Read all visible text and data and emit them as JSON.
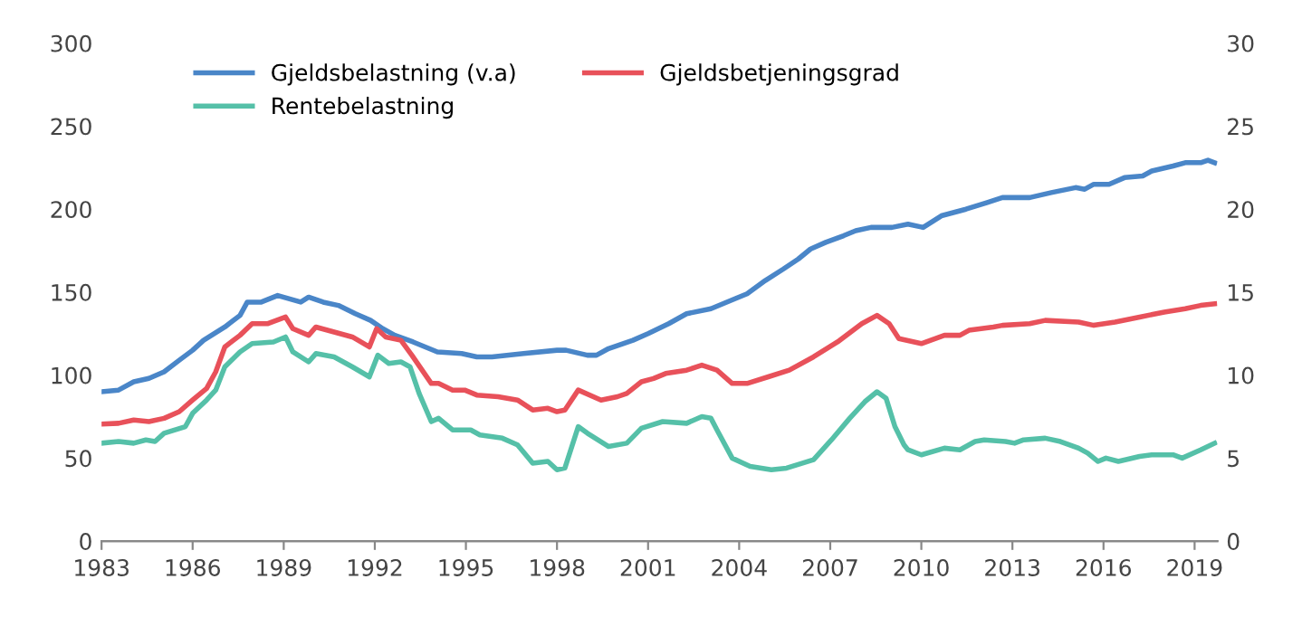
{
  "chart_data": {
    "type": "line",
    "xlim": [
      1983,
      2019.75
    ],
    "xticks": [
      1983,
      1986,
      1989,
      1992,
      1995,
      1998,
      2001,
      2004,
      2007,
      2010,
      2013,
      2016,
      2019
    ],
    "ylim": [
      0,
      300
    ],
    "yticks": [
      0,
      50,
      100,
      150,
      200,
      250,
      300
    ],
    "y2lim": [
      0,
      30
    ],
    "y2ticks": [
      0,
      5,
      10,
      15,
      20,
      25,
      30
    ],
    "legend": "top",
    "grid": false,
    "series": [
      {
        "name": "Gjeldsbelastning (v.a)",
        "color": "#4a86c8",
        "axis": "y",
        "x": [
          1983,
          1983.56,
          1984.06,
          1984.56,
          1985.06,
          1985.56,
          1986,
          1986.36,
          1987.06,
          1987.56,
          1987.8,
          1988.26,
          1988.8,
          1989.56,
          1989.82,
          1990.3,
          1990.8,
          1991.36,
          1991.86,
          1992.26,
          1992.66,
          1993.26,
          1994.06,
          1994.86,
          1995.36,
          1995.86,
          1996.9,
          1998,
          1998.3,
          1999.0,
          1999.3,
          1999.7,
          2000.5,
          2001,
          2001.68,
          2002.27,
          2003.07,
          2003.86,
          2004.26,
          2004.86,
          2005.46,
          2005.95,
          2006.35,
          2006.85,
          2007.44,
          2007.84,
          2008.34,
          2009.03,
          2009.56,
          2010.06,
          2010.66,
          2011.47,
          2012.17,
          2012.67,
          2013.57,
          2014.28,
          2015.08,
          2015.38,
          2015.68,
          2016.18,
          2016.69,
          2017.29,
          2017.59,
          2018.29,
          2018.69,
          2019.2,
          2019.44,
          2019.66
        ],
        "values": [
          90,
          91,
          96,
          98,
          102,
          109,
          115,
          121,
          129,
          136,
          144,
          144,
          148,
          144,
          147,
          144,
          142,
          137,
          133,
          128,
          124,
          120,
          114,
          113,
          111,
          111,
          113,
          115,
          115,
          112,
          112,
          116,
          121,
          125,
          131,
          137,
          140,
          146,
          149,
          157,
          164,
          170,
          176,
          180,
          184,
          187,
          189,
          189,
          191,
          189,
          196,
          200,
          204,
          207,
          207,
          210,
          213,
          212,
          215,
          215,
          219,
          220,
          223,
          226,
          228,
          228,
          229.5,
          228
        ]
      },
      {
        "name": "Gjeldsbetjeningsgrad",
        "color": "#e8515a",
        "axis": "y2",
        "x": [
          1983,
          1983.56,
          1984.06,
          1984.56,
          1985.06,
          1985.56,
          1986,
          1986.46,
          1986.76,
          1987.06,
          1987.56,
          1987.96,
          1988.46,
          1989.06,
          1989.3,
          1989.82,
          1990.06,
          1990.66,
          1991.26,
          1991.82,
          1992.06,
          1992.36,
          1992.86,
          1993.22,
          1993.86,
          1994.1,
          1994.56,
          1994.96,
          1995.36,
          1996.06,
          1996.7,
          1997.2,
          1997.7,
          1998,
          1998.26,
          1998.7,
          1999.45,
          1999.99,
          2000.3,
          2000.78,
          2001.18,
          2001.58,
          2002.27,
          2002.77,
          2003.27,
          2003.77,
          2004.26,
          2004.96,
          2005.65,
          2006.45,
          2007.24,
          2008.04,
          2008.54,
          2008.94,
          2009.26,
          2010,
          2010.76,
          2011.27,
          2011.57,
          2012.37,
          2012.67,
          2013.57,
          2014.08,
          2015.18,
          2015.68,
          2016.38,
          2017.19,
          2018,
          2018.69,
          2019.2,
          2019.66
        ],
        "values": [
          7.05,
          7.1,
          7.3,
          7.2,
          7.4,
          7.8,
          8.5,
          9.2,
          10.2,
          11.7,
          12.4,
          13.1,
          13.1,
          13.5,
          12.8,
          12.4,
          12.9,
          12.6,
          12.3,
          11.7,
          12.8,
          12.3,
          12.1,
          11.2,
          9.5,
          9.5,
          9.1,
          9.1,
          8.8,
          8.7,
          8.5,
          7.9,
          8.0,
          7.8,
          7.9,
          9.1,
          8.5,
          8.7,
          8.9,
          9.6,
          9.8,
          10.1,
          10.3,
          10.6,
          10.3,
          9.5,
          9.5,
          9.9,
          10.3,
          11.1,
          12.0,
          13.1,
          13.6,
          13.1,
          12.2,
          11.9,
          12.4,
          12.4,
          12.7,
          12.9,
          13.0,
          13.1,
          13.3,
          13.2,
          13.0,
          13.2,
          13.5,
          13.8,
          14.0,
          14.2,
          14.3
        ]
      },
      {
        "name": "Rentebelastning",
        "color": "#55c0a8",
        "axis": "y2",
        "x": [
          1983,
          1983.56,
          1984.06,
          1984.46,
          1984.76,
          1985.06,
          1985.76,
          1986,
          1986.46,
          1986.76,
          1987.06,
          1987.56,
          1987.96,
          1988.66,
          1989.06,
          1989.3,
          1989.82,
          1990.06,
          1990.66,
          1991.26,
          1991.82,
          1992.1,
          1992.46,
          1992.86,
          1993.16,
          1993.46,
          1993.86,
          1994.1,
          1994.56,
          1995.16,
          1995.46,
          1996.2,
          1996.7,
          1997.2,
          1997.7,
          1998,
          1998.26,
          1998.7,
          1999.0,
          1999.7,
          2000.3,
          2000.78,
          2001.48,
          2002.27,
          2002.77,
          2003.07,
          2003.27,
          2003.77,
          2004.36,
          2005.06,
          2005.56,
          2006.45,
          2007.04,
          2007.64,
          2008.14,
          2008.54,
          2008.84,
          2009.13,
          2009.43,
          2009.56,
          2010,
          2010.76,
          2011.27,
          2011.77,
          2012.07,
          2012.77,
          2013.07,
          2013.37,
          2014.08,
          2014.58,
          2015.18,
          2015.48,
          2015.82,
          2016.08,
          2016.49,
          2017.19,
          2017.59,
          2018.29,
          2018.59,
          2019.2,
          2019.66
        ],
        "values": [
          5.9,
          6.0,
          5.9,
          6.1,
          6.0,
          6.5,
          6.9,
          7.7,
          8.5,
          9.1,
          10.5,
          11.4,
          11.9,
          12.0,
          12.3,
          11.4,
          10.8,
          11.3,
          11.1,
          10.5,
          9.9,
          11.2,
          10.7,
          10.8,
          10.5,
          8.9,
          7.2,
          7.4,
          6.7,
          6.7,
          6.4,
          6.2,
          5.8,
          4.7,
          4.8,
          4.3,
          4.4,
          6.9,
          6.5,
          5.7,
          5.9,
          6.8,
          7.2,
          7.1,
          7.5,
          7.4,
          6.7,
          5.0,
          4.5,
          4.3,
          4.4,
          4.9,
          6.1,
          7.4,
          8.4,
          9.0,
          8.6,
          6.9,
          5.8,
          5.5,
          5.2,
          5.6,
          5.5,
          6.0,
          6.1,
          6.0,
          5.9,
          6.1,
          6.2,
          6.0,
          5.6,
          5.3,
          4.8,
          5.0,
          4.8,
          5.1,
          5.2,
          5.2,
          5.0,
          5.5,
          5.9
        ]
      }
    ]
  }
}
